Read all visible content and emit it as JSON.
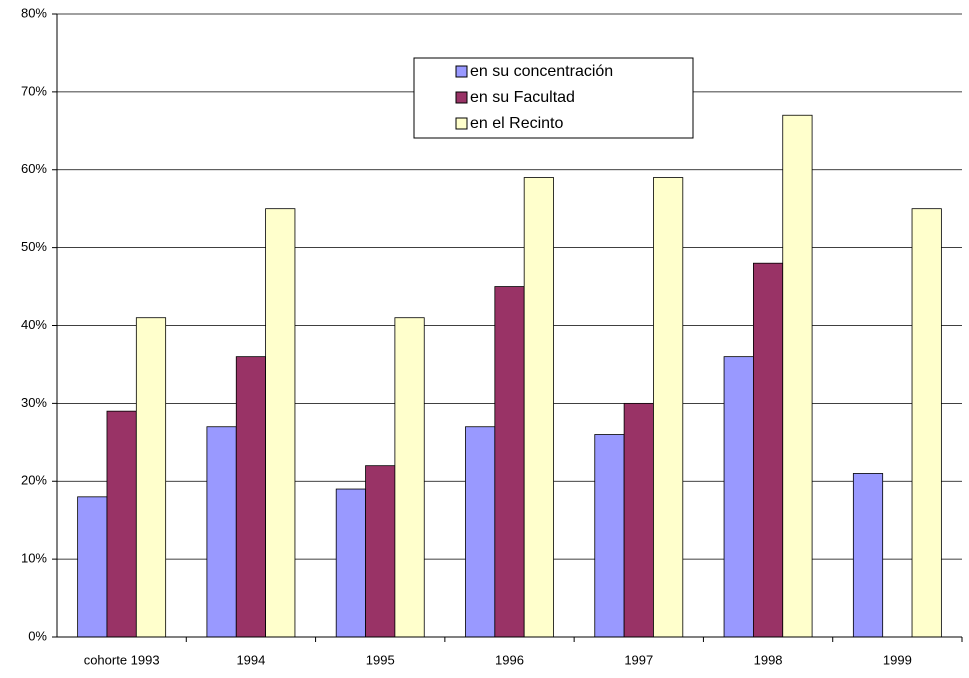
{
  "chart_data": {
    "type": "bar",
    "categories": [
      "cohorte 1993",
      "1994",
      "1995",
      "1996",
      "1997",
      "1998",
      "1999"
    ],
    "series": [
      {
        "name": "en su concentración",
        "color": "#9999ff",
        "values": [
          18,
          27,
          19,
          27,
          26,
          36,
          21
        ]
      },
      {
        "name": "en su Facultad",
        "color": "#993366",
        "values": [
          29,
          36,
          22,
          45,
          30,
          48,
          null
        ]
      },
      {
        "name": "en el Recinto",
        "color": "#ffffcc",
        "values": [
          41,
          55,
          41,
          59,
          59,
          67,
          55
        ]
      }
    ],
    "ylim": [
      0,
      80
    ],
    "yticks": [
      {
        "value": 0,
        "label": "0%"
      },
      {
        "value": 10,
        "label": "10%"
      },
      {
        "value": 20,
        "label": "20%"
      },
      {
        "value": 30,
        "label": "30%"
      },
      {
        "value": 40,
        "label": "40%"
      },
      {
        "value": 50,
        "label": "50%"
      },
      {
        "value": 60,
        "label": "60%"
      },
      {
        "value": 70,
        "label": "70%"
      },
      {
        "value": 80,
        "label": "80%"
      }
    ],
    "grid": true
  }
}
